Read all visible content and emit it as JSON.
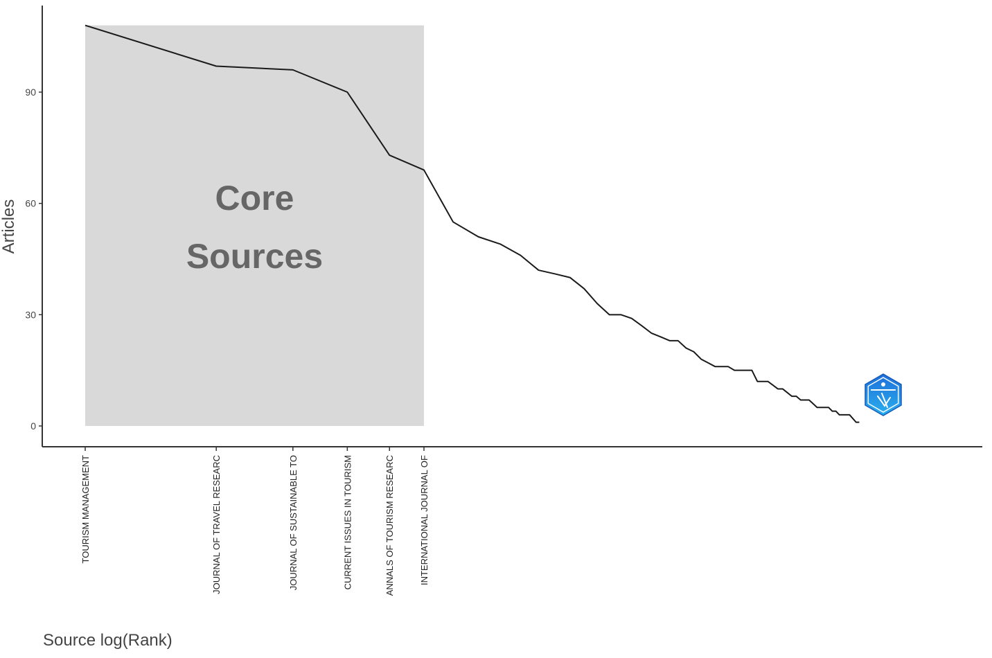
{
  "chart_data": {
    "type": "line",
    "xlabel": "Source log(Rank)",
    "ylabel": "Articles",
    "x_scale": "log",
    "x": [
      1,
      2,
      3,
      4,
      5,
      6,
      7,
      8,
      9,
      10,
      11,
      12,
      13,
      14,
      15,
      16,
      17,
      18,
      19,
      20,
      21,
      22,
      23,
      24,
      25,
      26,
      27,
      28,
      29,
      30,
      31,
      32,
      33,
      34,
      35,
      36,
      37,
      38,
      39,
      40,
      41,
      42,
      43,
      44,
      45,
      46,
      47,
      48,
      49,
      50,
      51,
      52,
      53,
      54,
      55,
      56,
      57,
      58,
      59,
      60
    ],
    "values": [
      108,
      97,
      96,
      90,
      73,
      69,
      55,
      51,
      49,
      46,
      42,
      41,
      40,
      37,
      33,
      30,
      30,
      29,
      27,
      25,
      24,
      23,
      23,
      21,
      20,
      18,
      17,
      16,
      16,
      16,
      15,
      15,
      15,
      15,
      12,
      12,
      12,
      11,
      10,
      10,
      9,
      8,
      8,
      7,
      7,
      7,
      6,
      5,
      5,
      5,
      5,
      4,
      4,
      3,
      3,
      3,
      3,
      2,
      1,
      1
    ],
    "core_sources": {
      "label_lines": [
        "Core",
        "Sources"
      ],
      "x_range": [
        1,
        6
      ],
      "y_range": [
        0,
        108
      ],
      "fill": "#d9d9d9"
    },
    "x_tick_labels": [
      {
        "rank": 1,
        "label": "TOURISM MANAGEMENT"
      },
      {
        "rank": 2,
        "label": "JOURNAL OF TRAVEL RESEARC"
      },
      {
        "rank": 3,
        "label": "JOURNAL OF SUSTAINABLE TO"
      },
      {
        "rank": 4,
        "label": "CURRENT ISSUES IN TOURISM"
      },
      {
        "rank": 5,
        "label": "ANNALS OF TOURISM RESEARC"
      },
      {
        "rank": 6,
        "label": "INTERNATIONAL JOURNAL OF"
      }
    ],
    "y_ticks": [
      0,
      30,
      60,
      90
    ],
    "ylim": [
      -6,
      111
    ],
    "xlim_rank": [
      0.72,
      80
    ],
    "grid": false,
    "line_color": "#1a1a1a",
    "logo_icon": "hexagon-logo-icon",
    "logo_colors": [
      "#1e6fd9",
      "#2ab0ee",
      "#ffffff"
    ]
  }
}
